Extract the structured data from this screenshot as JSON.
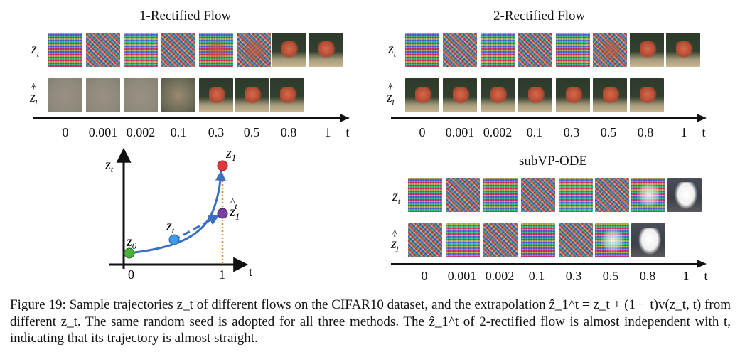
{
  "panels": {
    "rf1": {
      "title": "1-Rectified Flow",
      "row_top_label": "z_t",
      "row_bottom_label": "ẑ_1^t",
      "ticks": [
        "0",
        "0.001",
        "0.002",
        "0.1",
        "0.3",
        "0.5",
        "0.8",
        "1"
      ],
      "axis_label": "t"
    },
    "rf2": {
      "title": "2-Rectified Flow",
      "row_top_label": "z_t",
      "row_bottom_label": "ẑ_1^t",
      "ticks": [
        "0",
        "0.001",
        "0.002",
        "0.1",
        "0.3",
        "0.5",
        "0.8",
        "1"
      ],
      "axis_label": "t"
    },
    "subvp": {
      "title": "subVP-ODE",
      "row_top_label": "z_t",
      "row_bottom_label": "ẑ_1^t",
      "ticks": [
        "0",
        "0.001",
        "0.002",
        "0.1",
        "0.3",
        "0.5",
        "0.8",
        "1"
      ],
      "axis_label": "t"
    }
  },
  "diagram": {
    "y_label": "z_t",
    "x_label": "t",
    "x_ticks": [
      "0",
      "1"
    ],
    "points": {
      "z0": "z_0",
      "zt": "z_t",
      "z1": "z_1",
      "z1hat": "ẑ_1^t"
    }
  },
  "caption": {
    "text": "Figure 19: Sample trajectories z_t of different flows on the CIFAR10 dataset, and the extrapolation ẑ_1^t = z_t + (1 − t)v(z_t, t) from different z_t. The same random seed is adopted for all three methods. The ẑ_1^t of 2-rectified flow is almost independent with t, indicating that its trajectory is almost straight."
  },
  "colors": {
    "z0": "#4caf3a",
    "zt": "#3f9ae8",
    "z1": "#e5343b",
    "z1hat": "#7a3fa0",
    "curve": "#3a6fc4",
    "dotted": "#d88a2c"
  }
}
